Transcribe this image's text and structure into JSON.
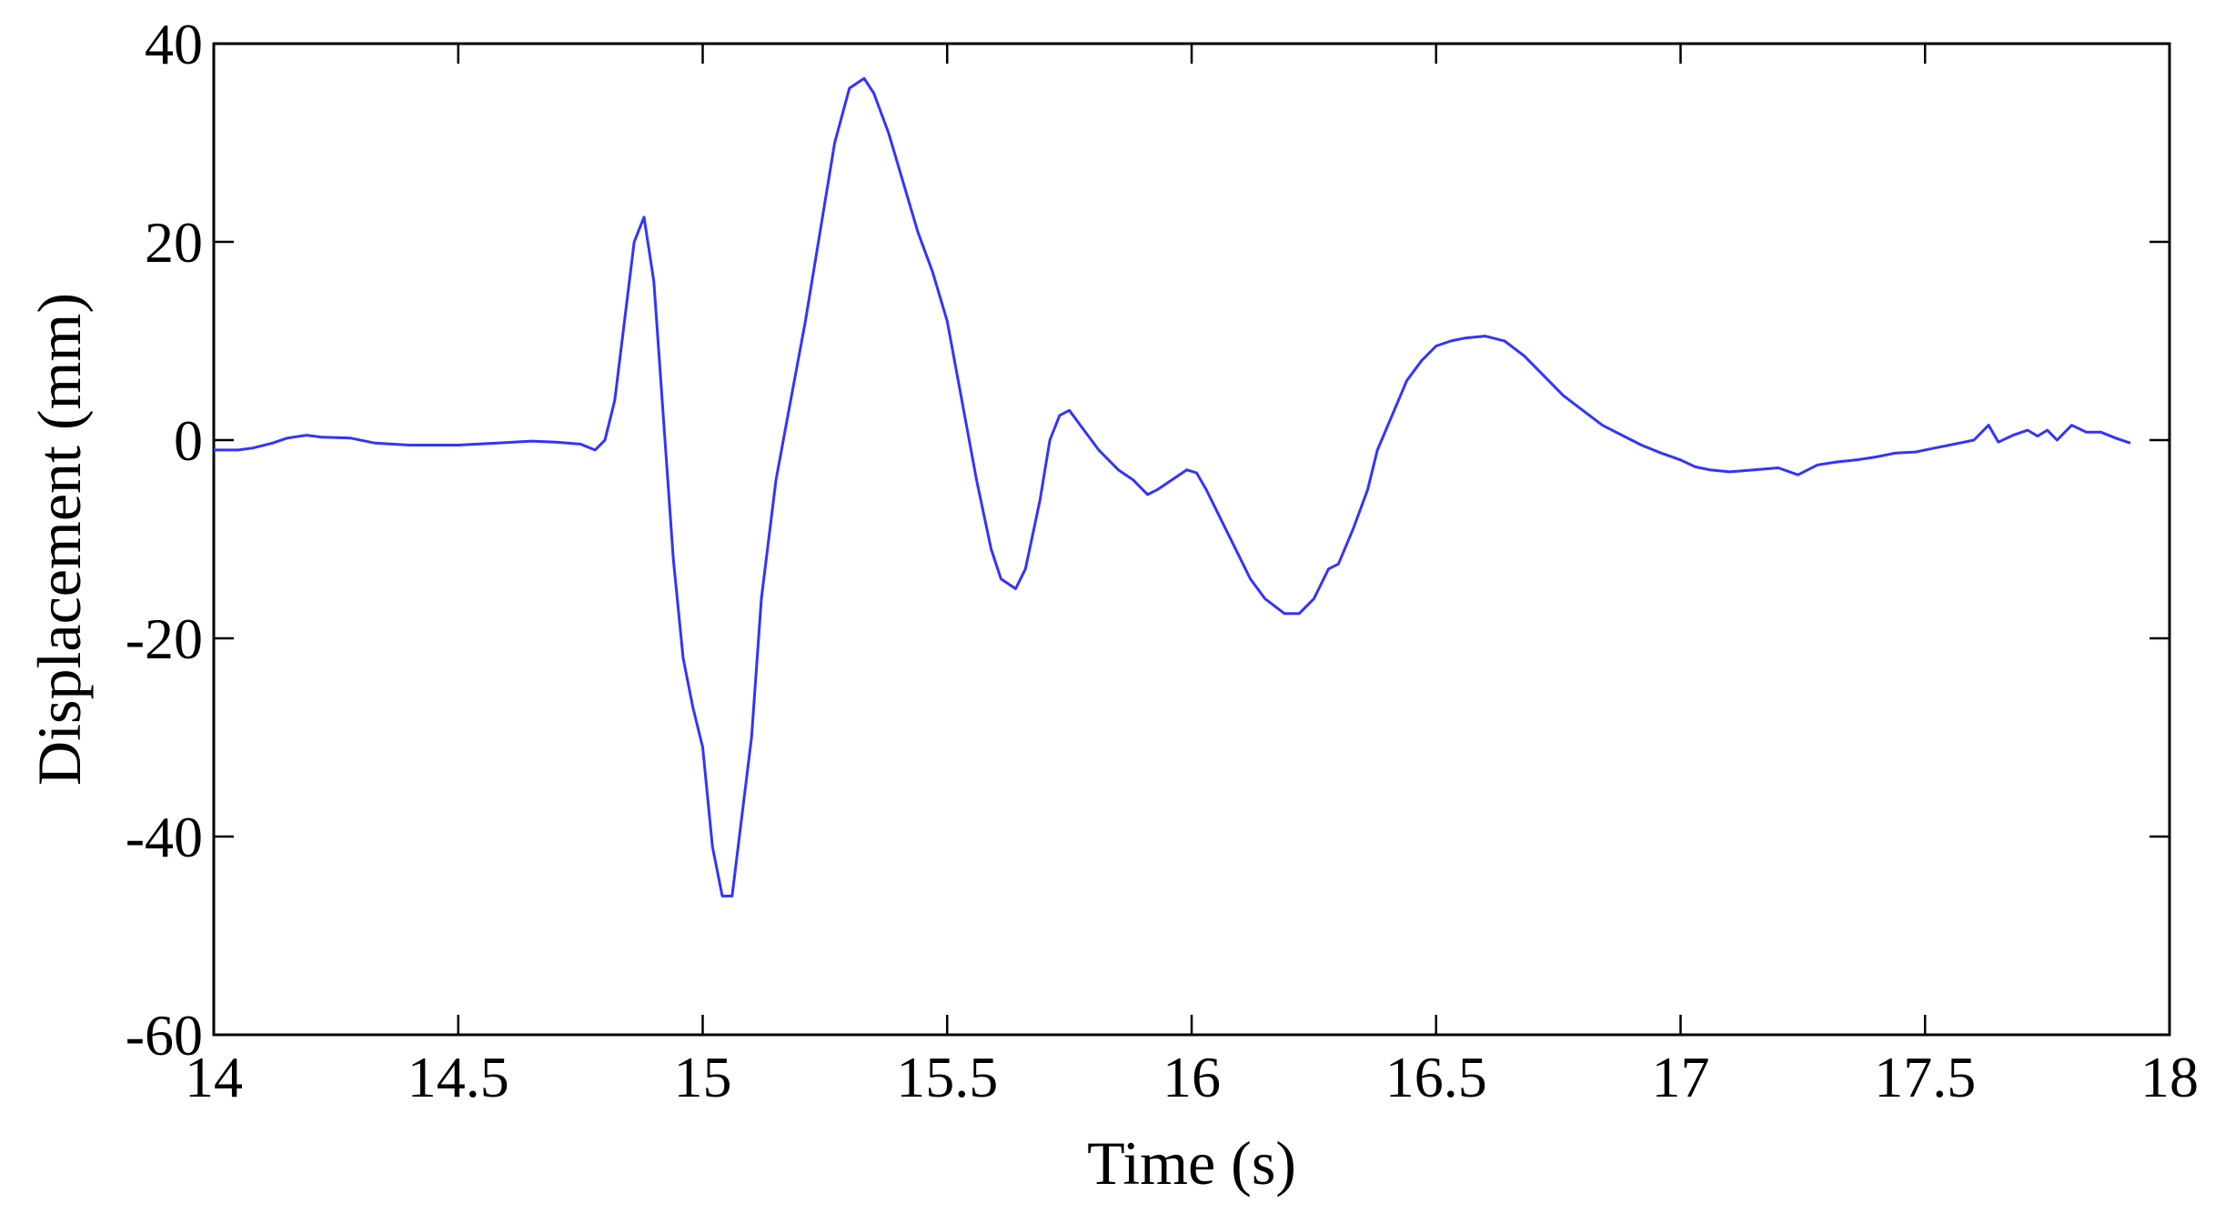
{
  "chart_data": {
    "type": "line",
    "title": "",
    "xlabel": "Time (s)",
    "ylabel": "Displacement  (mm)",
    "xlim": [
      14,
      18
    ],
    "ylim": [
      -60,
      40
    ],
    "x_ticks": [
      14,
      14.5,
      15,
      15.5,
      16,
      16.5,
      17,
      17.5,
      18
    ],
    "x_tick_labels": [
      "14",
      "14.5",
      "15",
      "15.5",
      "16",
      "16.5",
      "17",
      "17.5",
      "18"
    ],
    "y_ticks": [
      40,
      20,
      0,
      -20,
      -40,
      -60
    ],
    "y_tick_labels": [
      "40",
      "20",
      "0",
      "-20",
      "-40",
      "-60"
    ],
    "grid": false,
    "line_color": "#3333ff",
    "series": [
      {
        "points": [
          [
            14.0,
            -1.0
          ],
          [
            14.05,
            -1.0
          ],
          [
            14.08,
            -0.8
          ],
          [
            14.12,
            -0.3
          ],
          [
            14.15,
            0.2
          ],
          [
            14.19,
            0.5
          ],
          [
            14.22,
            0.3
          ],
          [
            14.28,
            0.2
          ],
          [
            14.33,
            -0.3
          ],
          [
            14.4,
            -0.5
          ],
          [
            14.5,
            -0.5
          ],
          [
            14.58,
            -0.3
          ],
          [
            14.65,
            -0.1
          ],
          [
            14.7,
            -0.2
          ],
          [
            14.75,
            -0.4
          ],
          [
            14.78,
            -1.0
          ],
          [
            14.8,
            0.0
          ],
          [
            14.82,
            4.0
          ],
          [
            14.84,
            12.0
          ],
          [
            14.86,
            20.0
          ],
          [
            14.88,
            22.5
          ],
          [
            14.9,
            16.0
          ],
          [
            14.92,
            2.0
          ],
          [
            14.94,
            -12.0
          ],
          [
            14.96,
            -22.0
          ],
          [
            14.98,
            -27.0
          ],
          [
            15.0,
            -31.0
          ],
          [
            15.02,
            -41.0
          ],
          [
            15.04,
            -46.0
          ],
          [
            15.06,
            -46.0
          ],
          [
            15.08,
            -38.0
          ],
          [
            15.1,
            -30.0
          ],
          [
            15.12,
            -16.0
          ],
          [
            15.15,
            -4.0
          ],
          [
            15.18,
            4.0
          ],
          [
            15.21,
            12.0
          ],
          [
            15.24,
            21.0
          ],
          [
            15.27,
            30.0
          ],
          [
            15.3,
            35.5
          ],
          [
            15.33,
            36.5
          ],
          [
            15.35,
            35.0
          ],
          [
            15.38,
            31.0
          ],
          [
            15.41,
            26.0
          ],
          [
            15.44,
            21.0
          ],
          [
            15.47,
            17.0
          ],
          [
            15.5,
            12.0
          ],
          [
            15.53,
            4.0
          ],
          [
            15.56,
            -4.0
          ],
          [
            15.59,
            -11.0
          ],
          [
            15.61,
            -14.0
          ],
          [
            15.64,
            -15.0
          ],
          [
            15.66,
            -13.0
          ],
          [
            15.69,
            -6.0
          ],
          [
            15.71,
            0.0
          ],
          [
            15.73,
            2.5
          ],
          [
            15.75,
            3.0
          ],
          [
            15.78,
            1.0
          ],
          [
            15.81,
            -1.0
          ],
          [
            15.85,
            -3.0
          ],
          [
            15.88,
            -4.0
          ],
          [
            15.91,
            -5.5
          ],
          [
            15.93,
            -5.0
          ],
          [
            15.96,
            -4.0
          ],
          [
            15.99,
            -3.0
          ],
          [
            16.01,
            -3.3
          ],
          [
            16.03,
            -5.0
          ],
          [
            16.06,
            -8.0
          ],
          [
            16.09,
            -11.0
          ],
          [
            16.12,
            -14.0
          ],
          [
            16.15,
            -16.0
          ],
          [
            16.19,
            -17.5
          ],
          [
            16.22,
            -17.5
          ],
          [
            16.25,
            -16.0
          ],
          [
            16.28,
            -13.0
          ],
          [
            16.3,
            -12.5
          ],
          [
            16.33,
            -9.0
          ],
          [
            16.36,
            -5.0
          ],
          [
            16.38,
            -1.0
          ],
          [
            16.41,
            2.5
          ],
          [
            16.44,
            6.0
          ],
          [
            16.47,
            8.0
          ],
          [
            16.5,
            9.5
          ],
          [
            16.53,
            10.0
          ],
          [
            16.56,
            10.3
          ],
          [
            16.6,
            10.5
          ],
          [
            16.64,
            10.0
          ],
          [
            16.68,
            8.5
          ],
          [
            16.72,
            6.5
          ],
          [
            16.76,
            4.5
          ],
          [
            16.8,
            3.0
          ],
          [
            16.84,
            1.5
          ],
          [
            16.88,
            0.5
          ],
          [
            16.92,
            -0.5
          ],
          [
            16.96,
            -1.3
          ],
          [
            17.0,
            -2.0
          ],
          [
            17.03,
            -2.7
          ],
          [
            17.06,
            -3.0
          ],
          [
            17.1,
            -3.2
          ],
          [
            17.15,
            -3.0
          ],
          [
            17.2,
            -2.8
          ],
          [
            17.24,
            -3.5
          ],
          [
            17.28,
            -2.5
          ],
          [
            17.32,
            -2.2
          ],
          [
            17.36,
            -2.0
          ],
          [
            17.4,
            -1.7
          ],
          [
            17.44,
            -1.3
          ],
          [
            17.48,
            -1.2
          ],
          [
            17.52,
            -0.8
          ],
          [
            17.56,
            -0.4
          ],
          [
            17.6,
            0.0
          ],
          [
            17.63,
            1.5
          ],
          [
            17.65,
            -0.2
          ],
          [
            17.68,
            0.5
          ],
          [
            17.71,
            1.0
          ],
          [
            17.73,
            0.4
          ],
          [
            17.75,
            1.0
          ],
          [
            17.77,
            0.0
          ],
          [
            17.8,
            1.5
          ],
          [
            17.83,
            0.8
          ],
          [
            17.86,
            0.8
          ],
          [
            17.89,
            0.2
          ],
          [
            17.92,
            -0.3
          ]
        ]
      }
    ]
  }
}
